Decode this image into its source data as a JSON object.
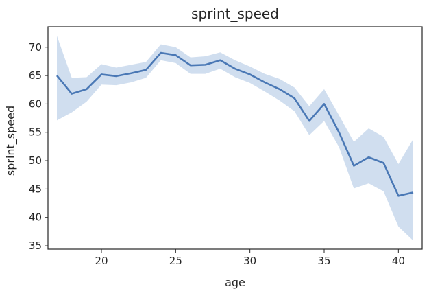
{
  "chart_data": {
    "type": "line",
    "title": "sprint_speed",
    "xlabel": "age",
    "ylabel": "sprint_speed",
    "x_ticks": [
      20,
      25,
      30,
      35,
      40
    ],
    "y_ticks": [
      35,
      40,
      45,
      50,
      55,
      60,
      65,
      70
    ],
    "xlim": [
      16.4,
      41.6
    ],
    "ylim": [
      34.4,
      73.6
    ],
    "grid": false,
    "legend": "none",
    "series": [
      {
        "x": [
          17,
          18,
          19,
          20,
          21,
          22,
          23,
          24,
          25,
          26,
          27,
          28,
          29,
          30,
          31,
          32,
          33,
          34,
          35,
          36,
          37,
          38,
          39,
          40,
          41
        ],
        "y": [
          65.0,
          61.8,
          62.6,
          65.2,
          64.9,
          65.4,
          66.0,
          69.0,
          68.6,
          66.8,
          66.9,
          67.7,
          66.2,
          65.2,
          63.8,
          62.6,
          61.0,
          57.0,
          60.0,
          55.0,
          49.1,
          50.6,
          49.6,
          43.8,
          44.4
        ],
        "ci_lower": [
          57.1,
          58.5,
          60.4,
          63.4,
          63.3,
          63.8,
          64.6,
          67.7,
          67.2,
          65.3,
          65.3,
          66.2,
          64.7,
          63.7,
          62.2,
          60.6,
          58.7,
          54.5,
          57.0,
          52.4,
          45.1,
          46.0,
          44.6,
          38.4,
          35.9
        ],
        "ci_upper": [
          72.0,
          64.6,
          64.7,
          67.0,
          66.4,
          66.9,
          67.4,
          70.5,
          70.0,
          68.2,
          68.4,
          69.1,
          67.7,
          66.6,
          65.3,
          64.4,
          62.9,
          59.6,
          62.6,
          58.0,
          53.3,
          55.7,
          54.2,
          49.4,
          53.8
        ]
      }
    ],
    "colors": {
      "line": "#4a78b5",
      "band": "#c8d8ec",
      "axis": "#262626"
    }
  }
}
